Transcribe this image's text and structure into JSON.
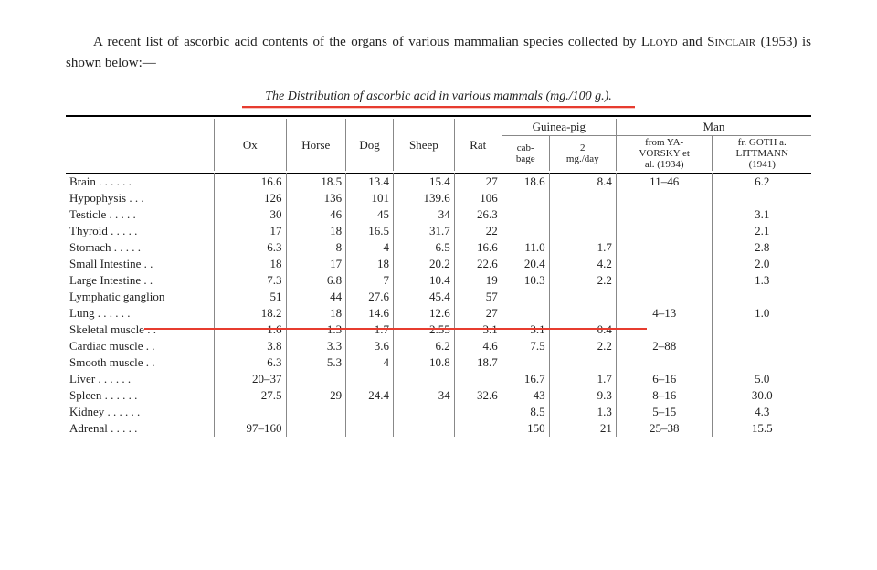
{
  "intro_prefix": "A recent list of ascorbic acid contents of the organs of various mammalian species collected by ",
  "intro_a1": "Lloyd",
  "intro_mid": " and ",
  "intro_a2": "Sinclair",
  "intro_suffix": " (1953) is shown below:—",
  "table_title": "The Distribution of ascorbic acid in various mammals (mg./100 g.).",
  "columns": {
    "c1": "Ox",
    "c2": "Horse",
    "c3": "Dog",
    "c4": "Sheep",
    "c5": "Rat",
    "gp": "Guinea-pig",
    "gp1": "cab-\nbage",
    "gp2": "2\nmg./day",
    "man": "Man",
    "man1a": "from YA-",
    "man1b": "VORSKY et",
    "man1c": "al. (1934)",
    "man2a": "fr. GOTH a.",
    "man2b": "LITTMANN",
    "man2c": "(1941)"
  },
  "rows": [
    {
      "label": "Brain . . . . . .",
      "v": [
        "16.6",
        "18.5",
        "13.4",
        "15.4",
        "27",
        "18.6",
        "8.4",
        "11–46",
        "6.2"
      ]
    },
    {
      "label": "Hypophysis  . . .",
      "v": [
        "126",
        "136",
        "101",
        "139.6",
        "106",
        "",
        "",
        "",
        ""
      ]
    },
    {
      "label": "Testicle . . . . .",
      "v": [
        "30",
        "46",
        "45",
        "34",
        "26.3",
        "",
        "",
        "",
        "3.1"
      ]
    },
    {
      "label": "Thyroid . . . . .",
      "v": [
        "17",
        "18",
        "16.5",
        "31.7",
        "22",
        "",
        "",
        "",
        "2.1"
      ]
    },
    {
      "label": "Stomach . . . . .",
      "v": [
        "6.3",
        "8",
        "4",
        "6.5",
        "16.6",
        "11.0",
        "1.7",
        "",
        "2.8"
      ]
    },
    {
      "label": "Small Intestine . .",
      "v": [
        "18",
        "17",
        "18",
        "20.2",
        "22.6",
        "20.4",
        "4.2",
        "",
        "2.0"
      ]
    },
    {
      "label": "Large Intestine . .",
      "v": [
        "7.3",
        "6.8",
        "7",
        "10.4",
        "19",
        "10.3",
        "2.2",
        "",
        "1.3"
      ]
    },
    {
      "label": "Lymphatic ganglion",
      "v": [
        "51",
        "44",
        "27.6",
        "45.4",
        "57",
        "",
        "",
        "",
        ""
      ]
    },
    {
      "label": "Lung . . . . . .",
      "v": [
        "18.2",
        "18",
        "14.6",
        "12.6",
        "27",
        "",
        "",
        "4–13",
        "1.0"
      ]
    },
    {
      "label": "Skeletal muscle . .",
      "v": [
        "1.6",
        "1.3",
        "1.7",
        "2.55",
        "3.1",
        "3.1",
        "0.4",
        "",
        ""
      ],
      "hl": true
    },
    {
      "label": "Cardiac muscle . .",
      "v": [
        "3.8",
        "3.3",
        "3.6",
        "6.2",
        "4.6",
        "7.5",
        "2.2",
        "2–88",
        ""
      ]
    },
    {
      "label": "Smooth muscle . .",
      "v": [
        "6.3",
        "5.3",
        "4",
        "10.8",
        "18.7",
        "",
        "",
        "",
        ""
      ]
    },
    {
      "label": "Liver . . . . . .",
      "v": [
        "20–37",
        "",
        "",
        "",
        "",
        "16.7",
        "1.7",
        "6–16",
        "5.0"
      ]
    },
    {
      "label": "Spleen . . . . . .",
      "v": [
        "27.5",
        "29",
        "24.4",
        "34",
        "32.6",
        "43",
        "9.3",
        "8–16",
        "30.0"
      ]
    },
    {
      "label": "Kidney . . . . . .",
      "v": [
        "",
        "",
        "",
        "",
        "",
        "8.5",
        "1.3",
        "5–15",
        "4.3"
      ]
    },
    {
      "label": "Adrenal . . . . .",
      "v": [
        "97–160",
        "",
        "",
        "",
        "",
        "150",
        "21",
        "25–38",
        "15.5"
      ]
    }
  ]
}
